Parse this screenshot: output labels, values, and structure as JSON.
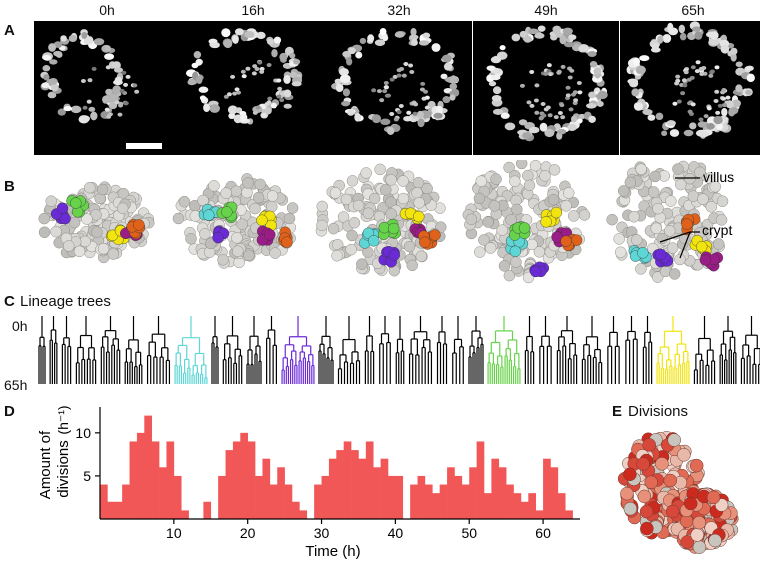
{
  "panel_a": {
    "letter": "A",
    "time_labels": [
      "0h",
      "16h",
      "32h",
      "49h",
      "65h"
    ]
  },
  "panel_b": {
    "letter": "B",
    "annotations": {
      "villus": "villus",
      "crypt": "crypt"
    },
    "colors": {
      "cyan": "#5fd6d6",
      "purple": "#6a2bd6",
      "green": "#66d34a",
      "yellow": "#f2e40f",
      "magenta": "#9a1c86",
      "orange": "#e0621a",
      "cell": "#d8d6d0"
    }
  },
  "panel_c": {
    "letter": "C",
    "title": "Lineage trees",
    "y_top": "0h",
    "y_bottom": "65h",
    "colors": [
      "#5fd6d6",
      "#6a2bd6",
      "#66d34a",
      "#f2e40f",
      "#9a1c86",
      "#d4541a"
    ]
  },
  "panel_d": {
    "letter": "D",
    "chart_data": {
      "type": "bar",
      "xlabel": "Time (h)",
      "ylabel_line1": "Amount of",
      "ylabel_line2": "divisions",
      "ylabel_unit": "(h⁻¹)",
      "xlim": [
        0,
        65
      ],
      "ylim": [
        0,
        13
      ],
      "xticks": [
        10,
        20,
        30,
        40,
        50,
        60
      ],
      "yticks": [
        5,
        10
      ],
      "color": "#f25757",
      "x": [
        1,
        2,
        3,
        4,
        5,
        6,
        7,
        8,
        9,
        10,
        11,
        12,
        13,
        14,
        15,
        16,
        17,
        18,
        19,
        20,
        21,
        22,
        23,
        24,
        25,
        26,
        27,
        28,
        29,
        30,
        31,
        32,
        33,
        34,
        35,
        36,
        37,
        38,
        39,
        40,
        41,
        42,
        43,
        44,
        45,
        46,
        47,
        48,
        49,
        50,
        51,
        52,
        53,
        54,
        55,
        56,
        57,
        58,
        59,
        60,
        61,
        62,
        63,
        64
      ],
      "values": [
        4,
        2,
        2,
        4,
        9,
        10,
        12,
        9,
        6,
        9,
        5,
        1,
        0,
        0,
        2,
        0,
        5,
        8,
        9,
        10,
        9,
        5,
        7,
        4,
        6,
        4,
        2,
        1,
        0,
        4,
        5,
        7,
        8,
        9,
        8,
        7,
        9,
        6,
        7,
        5,
        5,
        0,
        4,
        5,
        4,
        3,
        4,
        6,
        5,
        4,
        6,
        9,
        3,
        7,
        6,
        4,
        3,
        2,
        3,
        1,
        7,
        6,
        3,
        1
      ]
    }
  },
  "panel_e": {
    "letter": "E",
    "title": "Divisions"
  }
}
